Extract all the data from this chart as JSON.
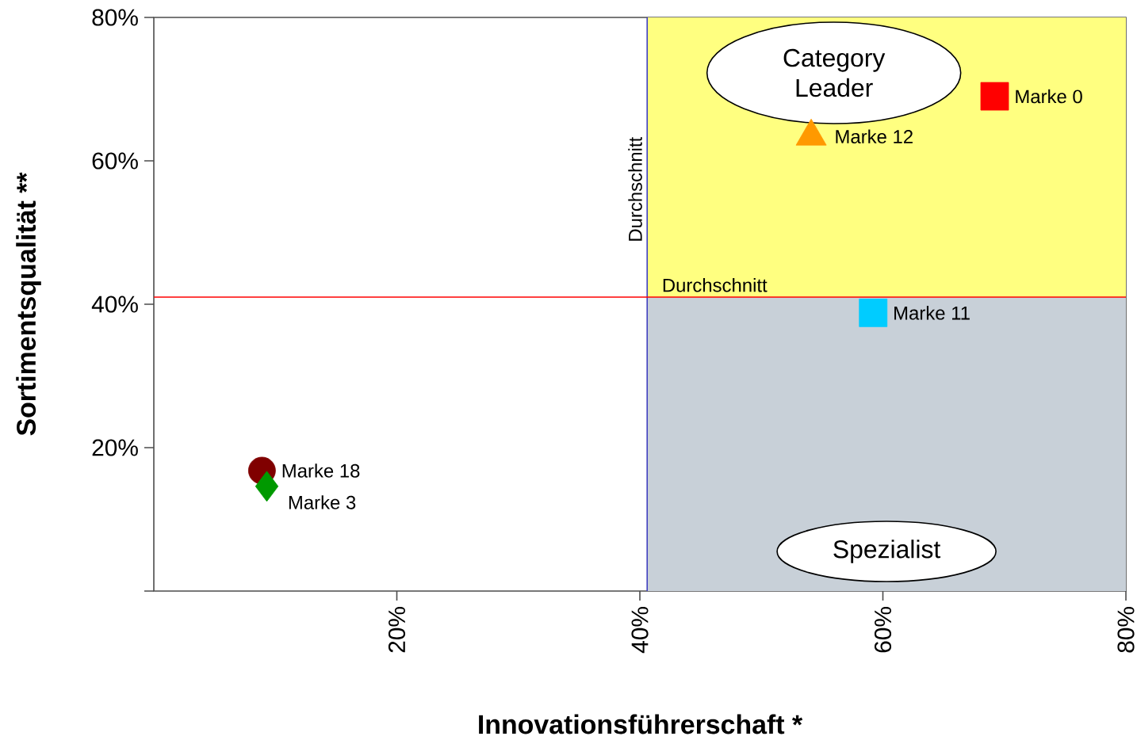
{
  "chart_data": {
    "type": "scatter",
    "xlabel": "Innovationsführerschaft *",
    "ylabel": "Sortimentsqualität **",
    "xlim": [
      0,
      80
    ],
    "ylim": [
      0,
      80
    ],
    "xticks": [
      {
        "value": 20,
        "label": "20%"
      },
      {
        "value": 40,
        "label": "40%"
      },
      {
        "value": 60,
        "label": "60%"
      },
      {
        "value": 80,
        "label": "80%"
      }
    ],
    "yticks": [
      {
        "value": 0,
        "label": null
      },
      {
        "value": 20,
        "label": "20%"
      },
      {
        "value": 40,
        "label": "40%"
      },
      {
        "value": 60,
        "label": "60%"
      },
      {
        "value": 80,
        "label": "80%"
      }
    ],
    "series": [
      {
        "name": "Marke 0",
        "color": "#ff0000",
        "marker": "square",
        "x": [
          69.2
        ],
        "values": [
          69.0
        ]
      },
      {
        "name": "Marke 12",
        "color": "#ff9900",
        "marker": "triangle",
        "x": [
          54.1
        ],
        "values": [
          63.4
        ]
      },
      {
        "name": "Marke 11",
        "color": "#00ccff",
        "marker": "square",
        "x": [
          59.2
        ],
        "values": [
          38.8
        ]
      },
      {
        "name": "Marke 18",
        "color": "#800000",
        "marker": "circle",
        "x": [
          8.9
        ],
        "values": [
          16.8
        ]
      },
      {
        "name": "Marke 3",
        "color": "#009900",
        "marker": "diamond",
        "x": [
          9.3
        ],
        "values": [
          14.6
        ]
      }
    ],
    "ref_lines": [
      {
        "axis": "x",
        "value": 40.6,
        "label": "Durchschnitt",
        "color": "#4040c0"
      },
      {
        "axis": "y",
        "value": 41.0,
        "label": "Durchschnitt",
        "color": "#ff0000"
      }
    ],
    "bands": [
      {
        "axis": "y",
        "from": 41.0,
        "to": 80,
        "label": "Category Leader",
        "color": "#ffff80"
      },
      {
        "axis": "y",
        "from": 0,
        "to": 41.0,
        "label": "Spezialist",
        "color": "#c8d0d8"
      }
    ]
  }
}
